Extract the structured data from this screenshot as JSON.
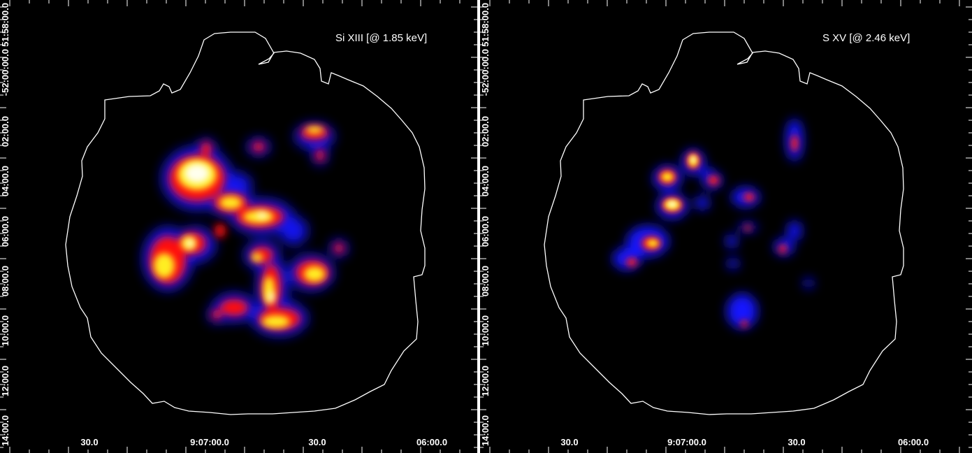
{
  "panels": [
    {
      "title": "Si XIII [@ 1.85 keV]",
      "x_ticks": [
        "30.0",
        "9:07:00.0",
        "30.0",
        "06:00.0"
      ],
      "y_ticks": [
        "14:00.0",
        "12:00.0",
        "10:00.0",
        "08:00.0",
        "06:00.0",
        "04:00.0",
        "02:00.0",
        "-52:00:00.0",
        "51:58:00.0"
      ]
    },
    {
      "title": "S XV [@ 2.46 keV]",
      "x_ticks": [
        "30.0",
        "9:07:00.0",
        "30.0",
        "06:00.0"
      ],
      "y_ticks": [
        "14:00.0",
        "12:00.0",
        "10:00.0",
        "08:00.0",
        "06:00.0",
        "04:00.0",
        "02:00.0",
        "-52:00:00.0",
        "51:58:00.0"
      ]
    }
  ],
  "colors": {
    "background": "#000000",
    "contour": "#ffffff",
    "colormap": [
      "#0000ff",
      "#ff0000",
      "#ffff00",
      "#ffffff"
    ]
  }
}
